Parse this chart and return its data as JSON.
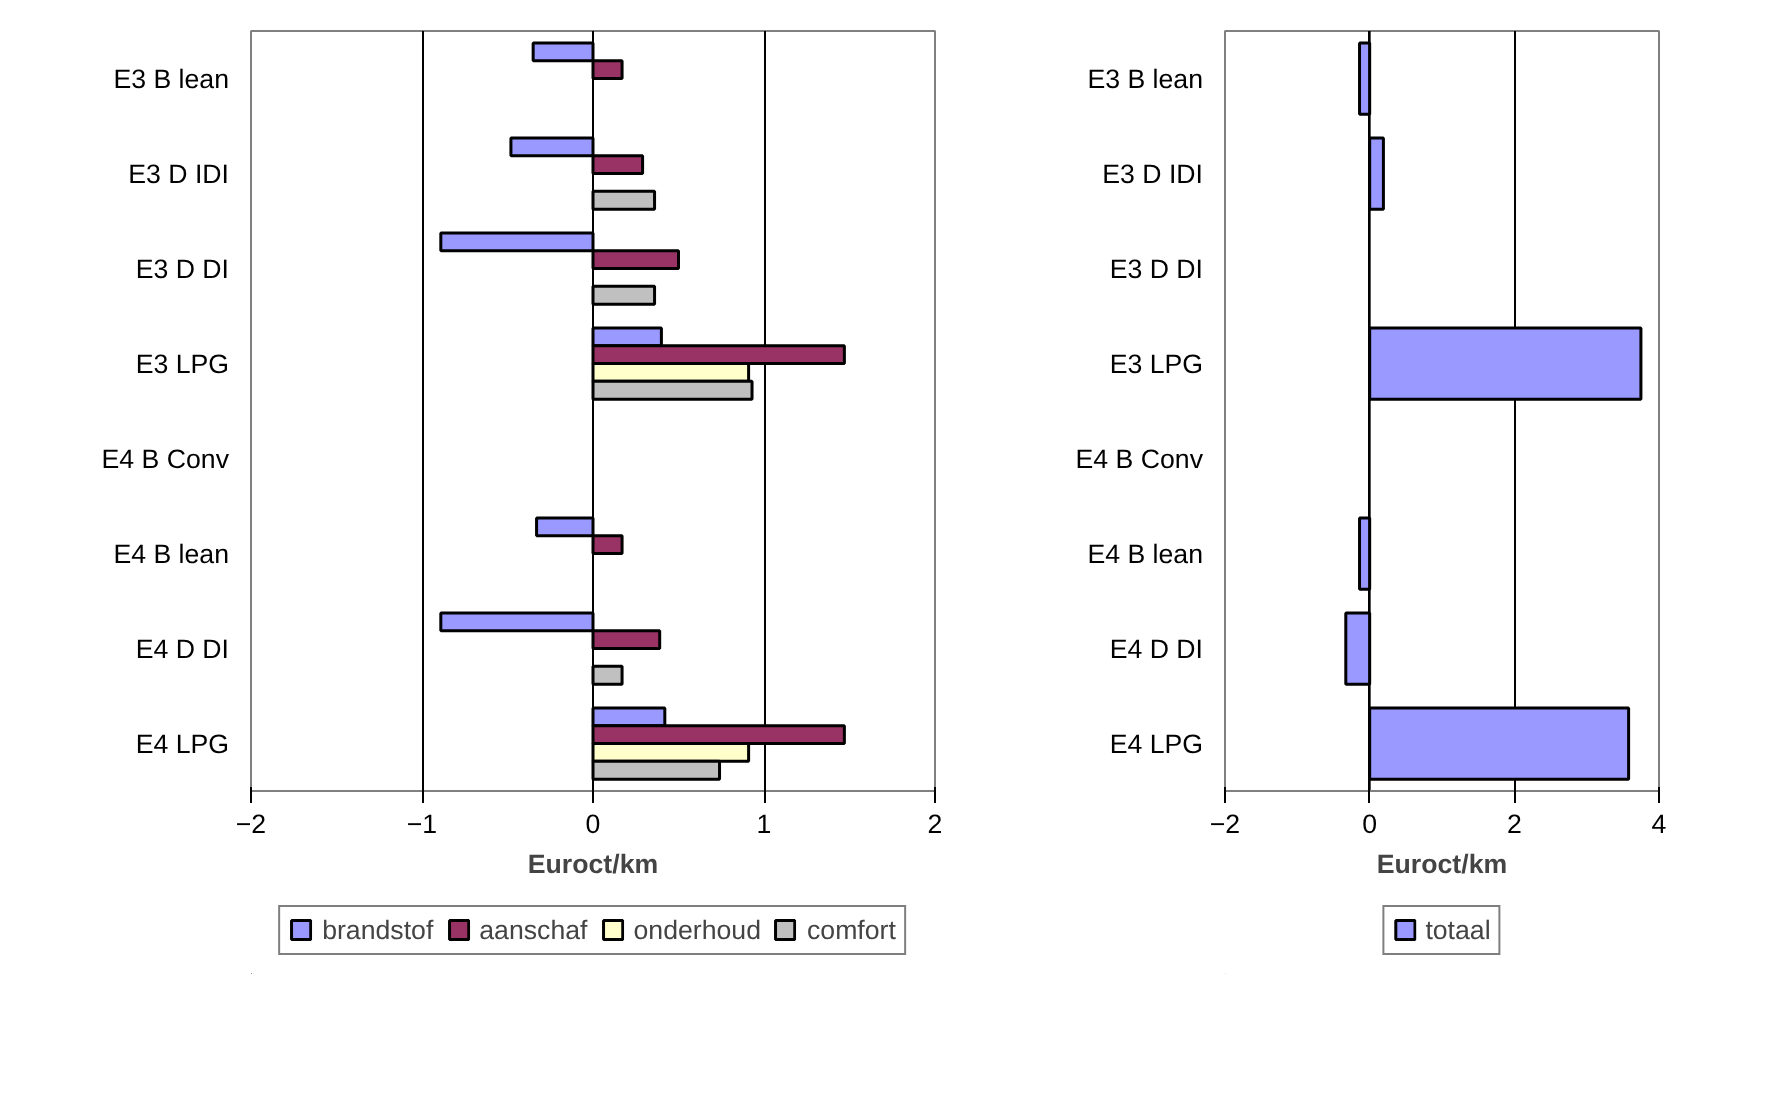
{
  "chart_data": [
    {
      "type": "bar",
      "orientation": "horizontal",
      "xlabel": "Euroct/km",
      "categories": [
        "E3 B lean",
        "E3 D IDI",
        "E3 D DI",
        "E3 LPG",
        "E4 B Conv",
        "E4 B lean",
        "E4 D DI",
        "E4 LPG"
      ],
      "xlim": [
        -2,
        2
      ],
      "xticks": [
        -2,
        -1,
        0,
        1,
        2
      ],
      "grid": "x",
      "legend": "bottom",
      "series": [
        {
          "name": "brandstof",
          "color": "#9999ff",
          "values": [
            -0.35,
            -0.48,
            -0.89,
            0.4,
            null,
            -0.33,
            -0.89,
            0.42
          ]
        },
        {
          "name": "aanschaf",
          "color": "#993366",
          "values": [
            0.17,
            0.29,
            0.5,
            1.47,
            null,
            0.17,
            0.39,
            1.47
          ]
        },
        {
          "name": "onderhoud",
          "color": "#ffffcc",
          "values": [
            null,
            null,
            null,
            0.91,
            null,
            null,
            null,
            0.91
          ]
        },
        {
          "name": "comfort",
          "color": "#c0c0c0",
          "values": [
            null,
            0.36,
            0.36,
            0.93,
            null,
            null,
            0.17,
            0.74
          ]
        }
      ]
    },
    {
      "type": "bar",
      "orientation": "horizontal",
      "xlabel": "Euroct/km",
      "categories": [
        "E3 B lean",
        "E3 D IDI",
        "E3 D DI",
        "E3 LPG",
        "E4 B Conv",
        "E4 B lean",
        "E4 D DI",
        "E4 LPG"
      ],
      "xlim": [
        -2,
        4
      ],
      "xticks": [
        -2,
        0,
        2,
        4
      ],
      "grid": "x",
      "legend": "bottom",
      "series": [
        {
          "name": "totaal",
          "color": "#9999ff",
          "values": [
            -0.14,
            0.19,
            null,
            3.75,
            null,
            -0.14,
            -0.33,
            3.58
          ]
        }
      ]
    }
  ]
}
